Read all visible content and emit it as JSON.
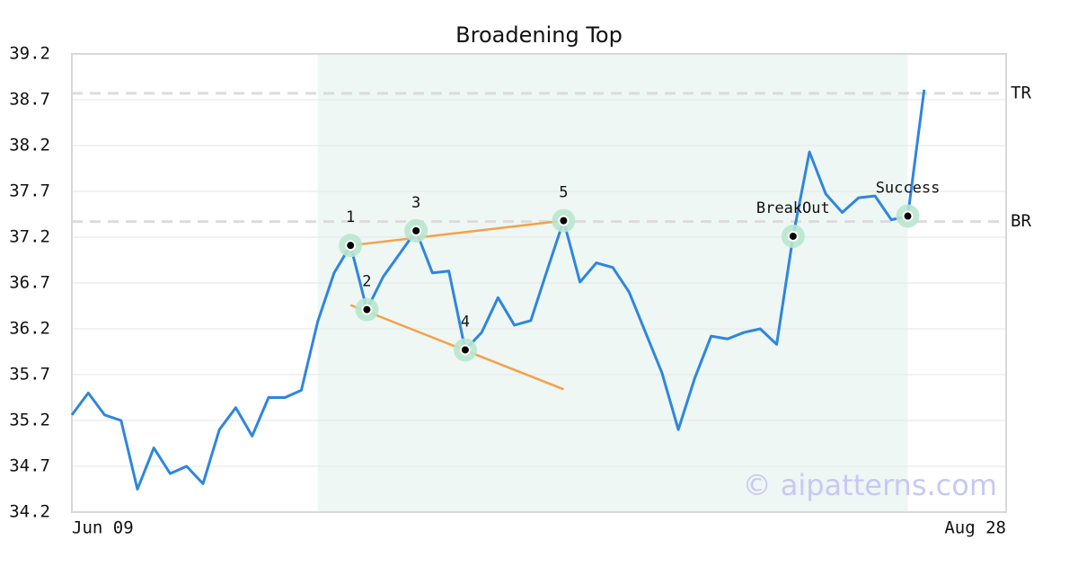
{
  "chart_data": {
    "type": "line",
    "title": "Broadening Top",
    "x": [
      0,
      1,
      2,
      3,
      4,
      5,
      6,
      7,
      8,
      9,
      10,
      11,
      12,
      13,
      14,
      15,
      16,
      17,
      18,
      19,
      20,
      21,
      22,
      23,
      24,
      25,
      26,
      27,
      28,
      29,
      30,
      31,
      32,
      33,
      34,
      35,
      36,
      37,
      38,
      39,
      40,
      41,
      42,
      43,
      44,
      45,
      46,
      47,
      48,
      49,
      50,
      51,
      52
    ],
    "series": [
      {
        "color": "#2e86de",
        "values": [
          35.26,
          35.5,
          35.26,
          35.2,
          34.45,
          34.9,
          34.62,
          34.7,
          34.51,
          35.1,
          35.34,
          35.03,
          35.45,
          35.45,
          35.53,
          36.28,
          36.81,
          37.11,
          36.41,
          36.77,
          37.02,
          37.27,
          36.81,
          36.83,
          35.97,
          36.16,
          36.54,
          36.24,
          36.29,
          36.84,
          37.38,
          36.71,
          36.92,
          36.87,
          36.6,
          36.16,
          35.72,
          35.1,
          35.66,
          36.12,
          36.09,
          36.16,
          36.2,
          36.03,
          37.21,
          38.13,
          37.67,
          37.47,
          37.63,
          37.65,
          37.39,
          37.43,
          38.81
        ]
      }
    ],
    "xlim": [
      0,
      57
    ],
    "xticks": [
      {
        "value": 0,
        "label": "Jun 09"
      },
      {
        "value": 57,
        "label": "Aug 28"
      }
    ],
    "ylim": [
      34.2,
      39.2
    ],
    "yticks": [
      34.2,
      34.7,
      35.2,
      35.7,
      36.2,
      36.7,
      37.2,
      37.7,
      38.2,
      38.7,
      39.2
    ],
    "grid": true,
    "shaded_x": [
      15,
      51
    ],
    "shade_color": "#eef7f3",
    "levels": [
      {
        "label": "TR",
        "value": 38.77
      },
      {
        "label": "BR",
        "value": 37.37
      }
    ],
    "trend_color": "#f5a04a",
    "trendlines": [
      {
        "x": [
          17,
          30
        ],
        "y": [
          37.11,
          37.38
        ]
      },
      {
        "x": [
          17,
          30
        ],
        "y": [
          36.46,
          35.54
        ]
      }
    ],
    "points": [
      {
        "x": 17,
        "label": "1"
      },
      {
        "x": 18,
        "label": "2"
      },
      {
        "x": 21,
        "label": "3"
      },
      {
        "x": 24,
        "label": "4"
      },
      {
        "x": 30,
        "label": "5"
      },
      {
        "x": 44,
        "label": "BreakOut"
      },
      {
        "x": 51,
        "label": "Success"
      }
    ],
    "watermark": "© aipatterns.com"
  }
}
